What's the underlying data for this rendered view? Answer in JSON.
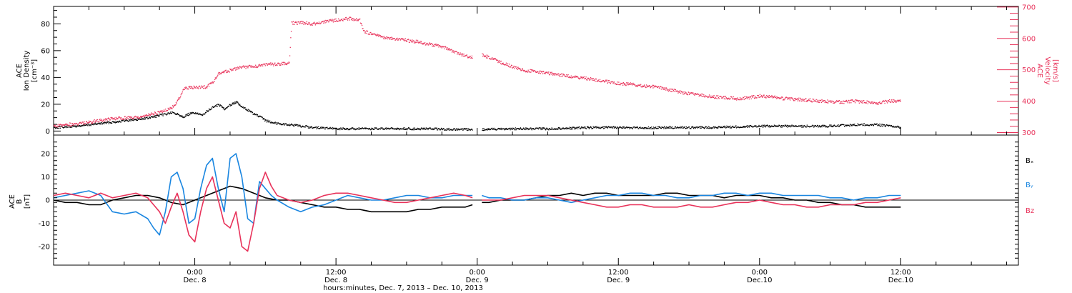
{
  "colors": {
    "density": "#000000",
    "velocity": "#e8325a",
    "bx": "#000000",
    "by": "#1a86e0",
    "bz": "#e8325a",
    "axis": "#000000"
  },
  "xlabel": "hours:minutes, Dec. 7, 2013 – Dec. 10, 2013",
  "x_ticks": [
    {
      "l1": "0:00",
      "l2": "Dec. 8",
      "t": 24
    },
    {
      "l1": "12:00",
      "l2": "Dec. 8",
      "t": 36
    },
    {
      "l1": "0:00",
      "l2": "Dec. 9",
      "t": 48
    },
    {
      "l1": "12:00",
      "l2": "Dec. 9",
      "t": 60
    },
    {
      "l1": "0:00",
      "l2": "Dec.10",
      "t": 72
    },
    {
      "l1": "12:00",
      "l2": "Dec.10",
      "t": 84
    }
  ],
  "chart_data": [
    {
      "type": "scatter",
      "x_unit": "hours from 0:00 Dec. 7, 2013",
      "xlim": [
        12,
        94
      ],
      "left_ylabel": [
        "ACE",
        "Ion Density",
        "[cm⁻³]"
      ],
      "right_ylabel": [
        "ACE",
        "Velocity",
        "[km/s]"
      ],
      "left_ylim": [
        -3,
        93
      ],
      "left_ticks": [
        0,
        20,
        40,
        60,
        80
      ],
      "right_ylim": [
        292,
        702
      ],
      "right_ticks": [
        300,
        400,
        500,
        600,
        700
      ],
      "series": [
        {
          "name": "Ion Density",
          "axis": "left",
          "x": [
            12,
            14,
            16,
            17,
            18,
            19,
            20,
            21,
            22,
            22.5,
            23,
            23.5,
            24,
            24.5,
            25,
            25.5,
            26,
            26.5,
            27,
            27.5,
            28,
            28.5,
            29,
            29.5,
            30,
            31,
            32,
            33,
            34,
            36,
            38,
            40,
            42,
            44,
            46,
            47,
            47.6,
            48.4,
            50,
            52,
            54,
            56,
            58,
            60,
            62,
            64,
            66,
            68,
            70,
            72,
            74,
            76,
            78,
            80,
            82,
            84
          ],
          "y": [
            3,
            4,
            6,
            7,
            8,
            9,
            10,
            12,
            14,
            13,
            11,
            13,
            14,
            12,
            15,
            18,
            20,
            17,
            20,
            22,
            18,
            16,
            13,
            11,
            8,
            6,
            5,
            4,
            3,
            2,
            2,
            2,
            2,
            2,
            1.5,
            1.5,
            1.5,
            1.5,
            2,
            2,
            2,
            2.5,
            3,
            3,
            2.5,
            3,
            3,
            3,
            3.5,
            4,
            4,
            4,
            4,
            5,
            5,
            3
          ]
        },
        {
          "name": "Velocity",
          "axis": "right",
          "x": [
            12,
            14,
            16,
            17,
            18,
            19,
            20,
            21,
            22,
            22.5,
            23,
            23.5,
            24,
            25,
            25.5,
            26,
            27,
            28,
            29,
            30,
            31,
            32,
            32.2,
            33,
            34,
            35,
            36,
            37,
            38,
            38.3,
            39,
            40,
            41,
            42,
            43,
            44,
            45,
            46,
            47,
            47.6,
            48.4,
            49,
            50,
            51,
            52,
            54,
            56,
            58,
            60,
            61,
            62,
            63,
            64,
            66,
            68,
            70,
            71,
            72,
            73,
            74,
            75,
            76,
            77,
            78,
            79,
            80,
            81,
            82,
            83,
            84
          ],
          "y": [
            322,
            330,
            340,
            345,
            348,
            350,
            358,
            365,
            380,
            400,
            440,
            445,
            445,
            447,
            460,
            490,
            500,
            510,
            512,
            518,
            520,
            522,
            650,
            652,
            648,
            655,
            660,
            665,
            660,
            625,
            615,
            605,
            600,
            595,
            590,
            582,
            575,
            560,
            545,
            540,
            550,
            540,
            525,
            510,
            500,
            490,
            480,
            470,
            458,
            455,
            450,
            448,
            440,
            425,
            415,
            410,
            412,
            418,
            415,
            410,
            408,
            405,
            402,
            400,
            398,
            402,
            398,
            395,
            402,
            400
          ]
        }
      ]
    },
    {
      "type": "line",
      "x_unit": "hours from 0:00 Dec. 7, 2013",
      "xlim": [
        12,
        94
      ],
      "ylabel": [
        "ACE",
        "B",
        "[nT]"
      ],
      "ylim": [
        -28,
        28
      ],
      "y_ticks": [
        -20,
        -10,
        0,
        10,
        20
      ],
      "zero_line": true,
      "legend": [
        "Bₓ",
        "Bᵧ",
        "Bᴢ"
      ],
      "series": [
        {
          "name": "Bx",
          "x": [
            12,
            13,
            14,
            15,
            16,
            17,
            18,
            19,
            20,
            21,
            22,
            23,
            24,
            25,
            26,
            27,
            28,
            29,
            30,
            31,
            32,
            33,
            34,
            35,
            36,
            37,
            38,
            39,
            40,
            41,
            42,
            43,
            44,
            45,
            46,
            47,
            47.6,
            48.4,
            49,
            50,
            51,
            52,
            53,
            54,
            55,
            56,
            57,
            58,
            59,
            60,
            61,
            62,
            63,
            64,
            65,
            66,
            67,
            68,
            69,
            70,
            71,
            72,
            73,
            74,
            75,
            76,
            77,
            78,
            79,
            80,
            81,
            82,
            83,
            84
          ],
          "y": [
            0,
            -1,
            -1,
            -2,
            -2,
            0,
            1,
            2,
            2,
            1,
            -1,
            -2,
            0,
            2,
            4,
            6,
            5,
            3,
            1,
            0,
            0,
            -1,
            -2,
            -3,
            -3,
            -4,
            -4,
            -5,
            -5,
            -5,
            -5,
            -4,
            -4,
            -3,
            -3,
            -3,
            -2,
            -1,
            -1,
            0,
            0,
            0,
            1,
            2,
            2,
            3,
            2,
            3,
            3,
            2,
            2,
            2,
            2,
            3,
            3,
            2,
            2,
            2,
            1,
            2,
            2,
            2,
            1,
            1,
            0,
            0,
            -1,
            -1,
            -2,
            -2,
            -3,
            -3,
            -3,
            -3
          ]
        },
        {
          "name": "By",
          "x": [
            12,
            13,
            14,
            15,
            16,
            17,
            18,
            19,
            20,
            20.5,
            21,
            21.5,
            22,
            22.5,
            23,
            23.5,
            24,
            24.5,
            25,
            25.5,
            26,
            26.5,
            27,
            27.5,
            28,
            28.5,
            29,
            29.5,
            30,
            30.5,
            31,
            32,
            33,
            34,
            35,
            36,
            37,
            38,
            39,
            40,
            41,
            42,
            43,
            44,
            45,
            46,
            47,
            47.6,
            48.4,
            49,
            50,
            51,
            52,
            53,
            54,
            55,
            56,
            57,
            58,
            59,
            60,
            61,
            62,
            63,
            64,
            65,
            66,
            67,
            68,
            69,
            70,
            71,
            72,
            73,
            74,
            75,
            76,
            77,
            78,
            79,
            80,
            81,
            82,
            83,
            84
          ],
          "y": [
            1,
            2,
            3,
            4,
            2,
            -5,
            -6,
            -5,
            -8,
            -12,
            -15,
            -5,
            10,
            12,
            5,
            -10,
            -8,
            5,
            15,
            18,
            5,
            -5,
            18,
            20,
            10,
            -8,
            -10,
            8,
            5,
            2,
            0,
            -3,
            -5,
            -3,
            -2,
            0,
            2,
            1,
            0,
            0,
            1,
            2,
            2,
            1,
            1,
            2,
            2,
            2,
            2,
            1,
            1,
            0,
            0,
            1,
            1,
            0,
            -1,
            0,
            1,
            2,
            2,
            3,
            3,
            2,
            2,
            1,
            1,
            2,
            2,
            3,
            3,
            2,
            3,
            3,
            2,
            2,
            2,
            2,
            1,
            1,
            0,
            1,
            1,
            2,
            2
          ]
        },
        {
          "name": "Bz",
          "x": [
            12,
            13,
            14,
            15,
            16,
            17,
            18,
            19,
            20,
            20.5,
            21,
            21.5,
            22,
            22.5,
            23,
            23.5,
            24,
            24.5,
            25,
            25.5,
            26,
            26.5,
            27,
            27.5,
            28,
            28.5,
            29,
            29.5,
            30,
            30.5,
            31,
            32,
            33,
            34,
            35,
            36,
            37,
            38,
            39,
            40,
            41,
            42,
            43,
            44,
            45,
            46,
            47,
            47.6,
            48.4,
            49,
            50,
            51,
            52,
            53,
            54,
            55,
            56,
            57,
            58,
            59,
            60,
            61,
            62,
            63,
            64,
            65,
            66,
            67,
            68,
            69,
            70,
            71,
            72,
            73,
            74,
            75,
            76,
            77,
            78,
            79,
            80,
            81,
            82,
            83,
            84
          ],
          "y": [
            2,
            3,
            2,
            1,
            3,
            1,
            2,
            3,
            1,
            -2,
            -5,
            -10,
            -3,
            3,
            -5,
            -15,
            -18,
            -5,
            5,
            10,
            0,
            -10,
            -12,
            -5,
            -20,
            -22,
            -10,
            5,
            12,
            6,
            2,
            0,
            -1,
            0,
            2,
            3,
            3,
            2,
            1,
            0,
            -1,
            -1,
            0,
            1,
            2,
            3,
            2,
            1,
            0,
            0,
            0,
            1,
            2,
            2,
            2,
            1,
            0,
            -1,
            -2,
            -3,
            -3,
            -2,
            -2,
            -3,
            -3,
            -3,
            -2,
            -3,
            -3,
            -2,
            -1,
            -1,
            0,
            -1,
            -2,
            -2,
            -3,
            -3,
            -2,
            -2,
            -2,
            -1,
            -1,
            0,
            1
          ]
        }
      ]
    }
  ]
}
